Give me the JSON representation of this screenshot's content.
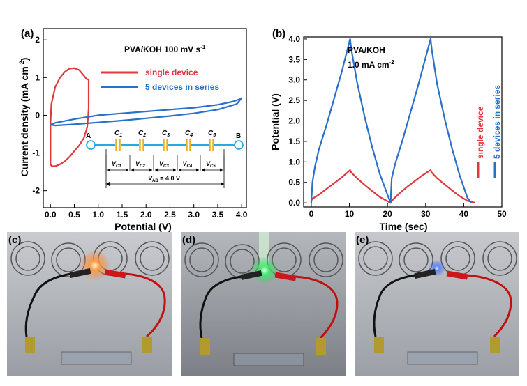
{
  "panels": {
    "a": {
      "letter": "(a)"
    },
    "b": {
      "letter": "(b)"
    },
    "c": {
      "letter": "(c)"
    },
    "d": {
      "letter": "(d)"
    },
    "e": {
      "letter": "(e)"
    }
  },
  "colors": {
    "single": "#e0383c",
    "series": "#2a6fc9",
    "circuit": "#29a9e0",
    "cap": "#e8b020"
  },
  "chart_data": [
    {
      "type": "line",
      "panel": "a",
      "annotation": "PVA/KOH 100 mV s",
      "annotation_sup": "-1",
      "xlabel": "Potential (V)",
      "ylabel": "Current  density (mA cm",
      "ylabel_sup": "-2",
      "ylabel_end": ")",
      "xlim": [
        -0.15,
        4.1
      ],
      "ylim": [
        -2.45,
        2.3
      ],
      "xticks": [
        "0.0",
        "0.5",
        "1.0",
        "1.5",
        "2.0",
        "2.5",
        "3.0",
        "3.5",
        "4.0"
      ],
      "xtick_values": [
        0,
        0.5,
        1,
        1.5,
        2,
        2.5,
        3,
        3.5,
        4
      ],
      "yticks": [
        "2",
        "1",
        "0",
        "-1",
        "-2"
      ],
      "ytick_values": [
        2,
        1,
        0,
        -1,
        -2
      ],
      "legend_position": "upper-middle",
      "series": [
        {
          "name": "single device",
          "color": "#e0383c",
          "x": [
            0.0,
            0.02,
            0.1,
            0.2,
            0.3,
            0.4,
            0.5,
            0.6,
            0.7,
            0.75,
            0.78,
            0.8,
            0.8,
            0.79,
            0.77,
            0.75,
            0.7,
            0.6,
            0.5,
            0.4,
            0.3,
            0.2,
            0.1,
            0.03,
            0.0,
            0.0
          ],
          "y": [
            -0.2,
            0.3,
            0.75,
            1.0,
            1.15,
            1.24,
            1.25,
            1.2,
            1.05,
            0.97,
            0.95,
            0.95,
            0.2,
            0.0,
            -0.3,
            -0.4,
            -0.6,
            -0.8,
            -0.95,
            -1.1,
            -1.22,
            -1.3,
            -1.35,
            -1.35,
            -1.3,
            -0.2
          ]
        },
        {
          "name": "5 devices in series",
          "color": "#2a6fc9",
          "x": [
            0.0,
            0.1,
            0.5,
            1.0,
            1.5,
            2.0,
            2.5,
            3.0,
            3.5,
            3.8,
            3.95,
            4.0,
            3.9,
            3.5,
            3.0,
            2.5,
            2.0,
            1.5,
            1.0,
            0.5,
            0.1,
            0.0
          ],
          "y": [
            -0.25,
            -0.2,
            -0.1,
            0.0,
            0.05,
            0.1,
            0.15,
            0.2,
            0.28,
            0.36,
            0.42,
            0.46,
            0.3,
            0.15,
            0.05,
            -0.02,
            -0.08,
            -0.14,
            -0.19,
            -0.24,
            -0.27,
            -0.25
          ]
        }
      ],
      "circuit": {
        "node_a": "A",
        "node_b": "B",
        "capacitors": [
          "C1",
          "C2",
          "C3",
          "C4",
          "C5"
        ],
        "cap_letters": [
          "C",
          "C",
          "C",
          "C",
          "C"
        ],
        "cap_subs": [
          "1",
          "2",
          "3",
          "4",
          "5"
        ],
        "voltages": [
          "VC1",
          "VC2",
          "VC3",
          "VC4",
          "VC5"
        ],
        "volt_letters": [
          "V",
          "V",
          "V",
          "V",
          "V"
        ],
        "volt_subs": [
          "C1",
          "C2",
          "C3",
          "C4",
          "C5"
        ],
        "total_label": "V",
        "total_sub": "AB",
        "total_value": " = 4.0 V"
      }
    },
    {
      "type": "line",
      "panel": "b",
      "annotation_line1": "PVA/KOH",
      "annotation_line2": "1.0 mA cm",
      "annotation_sup": "-2",
      "xlabel": "Time (sec)",
      "ylabel": "Potential (V)",
      "xlim": [
        -2,
        50
      ],
      "ylim": [
        -0.1,
        4.05
      ],
      "xticks": [
        "0",
        "10",
        "20",
        "30",
        "40",
        "50"
      ],
      "xtick_values": [
        0,
        10,
        20,
        30,
        40,
        50
      ],
      "yticks": [
        "0.0",
        "0.5",
        "1.0",
        "1.5",
        "2.0",
        "2.5",
        "3.0",
        "3.5",
        "4.0"
      ],
      "ytick_values": [
        0,
        0.5,
        1,
        1.5,
        2,
        2.5,
        3,
        3.5,
        4
      ],
      "legend_position": "right-vertical",
      "series": [
        {
          "name": "single device",
          "color": "#e0383c",
          "x": [
            0,
            0.3,
            2,
            4,
            6,
            8,
            10.2,
            10.5,
            12,
            14,
            16,
            18,
            20.8,
            21.1,
            23,
            25,
            27,
            29,
            31.3,
            31.6,
            33,
            35,
            37,
            39,
            41,
            43
          ],
          "y": [
            0.05,
            0.1,
            0.2,
            0.34,
            0.48,
            0.62,
            0.8,
            0.74,
            0.6,
            0.44,
            0.29,
            0.14,
            0.0,
            0.05,
            0.22,
            0.38,
            0.52,
            0.66,
            0.8,
            0.74,
            0.6,
            0.45,
            0.3,
            0.16,
            0.05,
            0.0
          ]
        },
        {
          "name": "5 devices in series",
          "color": "#2a6fc9",
          "x": [
            0,
            0.3,
            1,
            2,
            4,
            6,
            8,
            10.2,
            10.5,
            12,
            14,
            16,
            18,
            20.8,
            21.1,
            22,
            24,
            26,
            28,
            31.3,
            31.6,
            33,
            35,
            37,
            39,
            41,
            42
          ],
          "y": [
            0.0,
            0.5,
            0.9,
            1.3,
            1.9,
            2.55,
            3.2,
            4.0,
            3.75,
            2.95,
            2.1,
            1.35,
            0.7,
            0.0,
            0.6,
            0.95,
            1.55,
            2.2,
            2.85,
            4.0,
            3.75,
            2.9,
            2.05,
            1.3,
            0.65,
            0.12,
            0.0
          ]
        }
      ]
    }
  ]
}
